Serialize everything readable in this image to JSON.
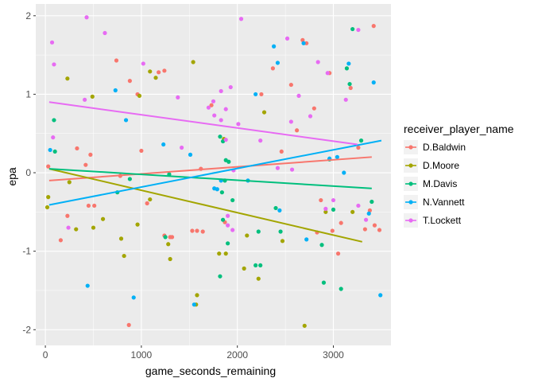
{
  "chart_data": {
    "type": "scatter",
    "title": "",
    "xlabel": "game_seconds_remaining",
    "ylabel": "epa",
    "xlim": [
      -100,
      3600
    ],
    "ylim": [
      -2.2,
      2.15
    ],
    "x_ticks": [
      0,
      1000,
      2000,
      3000
    ],
    "y_ticks": [
      -2,
      -1,
      0,
      1,
      2
    ],
    "x_tick_labels": [
      "0",
      "1000",
      "2000",
      "3000"
    ],
    "y_tick_labels": [
      "-2",
      "-1",
      "0",
      "1",
      "2"
    ],
    "grid": true,
    "legend": {
      "title": "receiver_player_name",
      "position": "right"
    },
    "series": [
      {
        "name": "D.Baldwin",
        "color": "#F8766D",
        "trend": [
          [
            40,
            -0.1
          ],
          [
            3400,
            0.2
          ]
        ],
        "points": [
          [
            30,
            0.08
          ],
          [
            160,
            -0.86
          ],
          [
            230,
            -0.55
          ],
          [
            330,
            0.31
          ],
          [
            420,
            0.1
          ],
          [
            450,
            -0.42
          ],
          [
            470,
            0.23
          ],
          [
            510,
            -0.42
          ],
          [
            740,
            1.43
          ],
          [
            780,
            -0.04
          ],
          [
            870,
            -1.94
          ],
          [
            880,
            1.17
          ],
          [
            960,
            1.0
          ],
          [
            1000,
            0.28
          ],
          [
            1060,
            -0.39
          ],
          [
            1180,
            1.28
          ],
          [
            1240,
            1.3
          ],
          [
            1240,
            -0.8
          ],
          [
            1300,
            -0.82
          ],
          [
            1320,
            -0.82
          ],
          [
            1530,
            -0.74
          ],
          [
            1580,
            -0.74
          ],
          [
            1620,
            0.05
          ],
          [
            1640,
            -0.75
          ],
          [
            1730,
            0.86
          ],
          [
            1870,
            -0.63
          ],
          [
            2250,
            1.0
          ],
          [
            2370,
            1.33
          ],
          [
            2460,
            0.27
          ],
          [
            2620,
            0.54
          ],
          [
            2680,
            1.69
          ],
          [
            2720,
            1.65
          ],
          [
            2800,
            0.82
          ],
          [
            2830,
            -0.76
          ],
          [
            2870,
            -0.35
          ],
          [
            2960,
            1.27
          ],
          [
            2990,
            -0.74
          ],
          [
            3050,
            -1.03
          ],
          [
            3080,
            -0.64
          ],
          [
            3180,
            1.08
          ],
          [
            3260,
            0.32
          ],
          [
            3330,
            -0.72
          ],
          [
            3380,
            -0.48
          ],
          [
            3420,
            1.87
          ],
          [
            3430,
            -0.67
          ],
          [
            3480,
            -0.73
          ],
          [
            2560,
            1.12
          ]
        ]
      },
      {
        "name": "D.Moore",
        "color": "#A3A500",
        "trend": [
          [
            40,
            0.05
          ],
          [
            3300,
            -0.88
          ]
        ],
        "points": [
          [
            20,
            -0.44
          ],
          [
            30,
            -0.31
          ],
          [
            230,
            1.2
          ],
          [
            250,
            -0.12
          ],
          [
            320,
            -0.72
          ],
          [
            500,
            -0.7
          ],
          [
            490,
            0.97
          ],
          [
            600,
            -0.59
          ],
          [
            790,
            -0.84
          ],
          [
            820,
            -1.06
          ],
          [
            960,
            -0.66
          ],
          [
            980,
            0.98
          ],
          [
            1090,
            -0.34
          ],
          [
            1090,
            1.29
          ],
          [
            1150,
            1.21
          ],
          [
            1280,
            -0.91
          ],
          [
            1300,
            -1.1
          ],
          [
            1540,
            1.41
          ],
          [
            1570,
            -1.68
          ],
          [
            1580,
            -1.56
          ],
          [
            1810,
            -1.03
          ],
          [
            1860,
            0.43
          ],
          [
            1880,
            -1.03
          ],
          [
            2070,
            -1.22
          ],
          [
            2100,
            -0.8
          ],
          [
            2220,
            -1.35
          ],
          [
            2280,
            0.77
          ],
          [
            2470,
            -0.87
          ],
          [
            2700,
            -1.95
          ],
          [
            2920,
            -0.5
          ],
          [
            3200,
            -0.5
          ]
        ]
      },
      {
        "name": "M.Davis",
        "color": "#00BF7D",
        "trend": [
          [
            40,
            0.05
          ],
          [
            3400,
            -0.2
          ]
        ],
        "points": [
          [
            90,
            0.67
          ],
          [
            100,
            0.27
          ],
          [
            750,
            -0.25
          ],
          [
            880,
            -0.08
          ],
          [
            1250,
            -0.82
          ],
          [
            1290,
            -0.02
          ],
          [
            1820,
            -1.32
          ],
          [
            1820,
            0.46
          ],
          [
            1840,
            -0.25
          ],
          [
            1850,
            0.4
          ],
          [
            1850,
            -0.6
          ],
          [
            1870,
            -0.1
          ],
          [
            1880,
            0.16
          ],
          [
            1900,
            -0.9
          ],
          [
            1910,
            0.14
          ],
          [
            1950,
            -0.35
          ],
          [
            2190,
            -1.18
          ],
          [
            2220,
            -0.75
          ],
          [
            2240,
            -1.18
          ],
          [
            2400,
            -0.45
          ],
          [
            2450,
            -0.75
          ],
          [
            2880,
            -0.92
          ],
          [
            2900,
            -1.4
          ],
          [
            2960,
            0.17
          ],
          [
            3000,
            -0.47
          ],
          [
            3080,
            -1.48
          ],
          [
            3140,
            1.33
          ],
          [
            3170,
            1.13
          ],
          [
            3200,
            1.83
          ],
          [
            3290,
            0.41
          ],
          [
            3400,
            -0.37
          ]
        ]
      },
      {
        "name": "N.Vannett",
        "color": "#00B0F6",
        "trend": [
          [
            40,
            -0.41
          ],
          [
            3500,
            0.41
          ]
        ],
        "points": [
          [
            50,
            0.29
          ],
          [
            440,
            -1.44
          ],
          [
            730,
            1.05
          ],
          [
            840,
            0.67
          ],
          [
            920,
            -1.59
          ],
          [
            1230,
            0.36
          ],
          [
            1510,
            0.23
          ],
          [
            1550,
            -1.68
          ],
          [
            1760,
            -0.2
          ],
          [
            1790,
            -0.21
          ],
          [
            1830,
            -0.1
          ],
          [
            2110,
            -0.1
          ],
          [
            2190,
            1.0
          ],
          [
            2380,
            1.61
          ],
          [
            2420,
            1.4
          ],
          [
            2440,
            -0.48
          ],
          [
            2690,
            1.65
          ],
          [
            2720,
            -0.85
          ],
          [
            2960,
            0.18
          ],
          [
            3040,
            0.2
          ],
          [
            3110,
            0.0
          ],
          [
            3160,
            1.39
          ],
          [
            3370,
            -0.52
          ],
          [
            3420,
            1.15
          ],
          [
            3490,
            -1.56
          ]
        ]
      },
      {
        "name": "T.Lockett",
        "color": "#E76BF3",
        "trend": [
          [
            40,
            0.9
          ],
          [
            3250,
            0.36
          ]
        ],
        "points": [
          [
            70,
            1.66
          ],
          [
            90,
            1.38
          ],
          [
            80,
            0.45
          ],
          [
            240,
            -0.7
          ],
          [
            430,
            1.98
          ],
          [
            410,
            0.93
          ],
          [
            620,
            1.78
          ],
          [
            1020,
            1.39
          ],
          [
            1380,
            0.96
          ],
          [
            1420,
            0.32
          ],
          [
            1700,
            0.83
          ],
          [
            1750,
            0.91
          ],
          [
            1760,
            0.73
          ],
          [
            1830,
            1.04
          ],
          [
            1830,
            0.67
          ],
          [
            1880,
            0.42
          ],
          [
            1880,
            0.81
          ],
          [
            1900,
            -0.55
          ],
          [
            1900,
            -0.67
          ],
          [
            1930,
            1.09
          ],
          [
            1950,
            -0.73
          ],
          [
            1960,
            0.03
          ],
          [
            2010,
            0.62
          ],
          [
            2040,
            1.96
          ],
          [
            2240,
            0.41
          ],
          [
            2420,
            0.06
          ],
          [
            2520,
            1.71
          ],
          [
            2560,
            0.65
          ],
          [
            2570,
            0.04
          ],
          [
            2640,
            0.98
          ],
          [
            2760,
            0.72
          ],
          [
            2840,
            1.41
          ],
          [
            2920,
            -0.46
          ],
          [
            2940,
            1.27
          ],
          [
            3000,
            -0.35
          ],
          [
            3130,
            0.93
          ],
          [
            3260,
            1.82
          ],
          [
            3260,
            -0.42
          ],
          [
            3340,
            -0.6
          ]
        ]
      }
    ]
  }
}
